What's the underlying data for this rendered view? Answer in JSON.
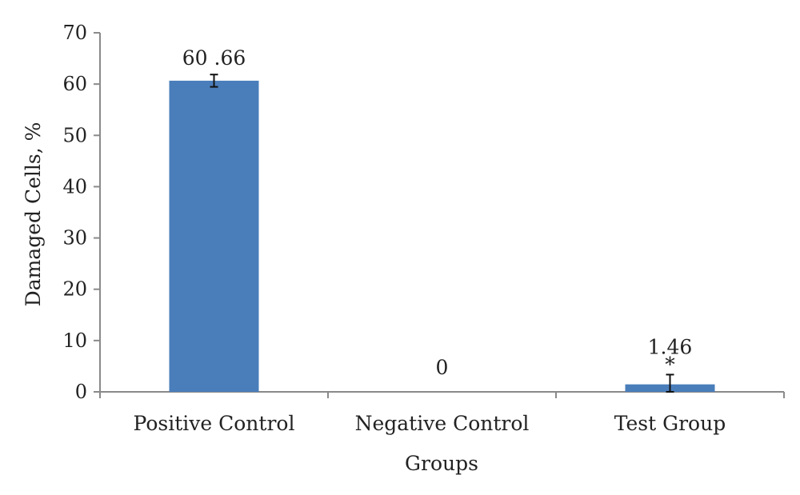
{
  "chart_data": {
    "type": "bar",
    "categories": [
      "Positive Control",
      "Negative Control",
      "Test Group"
    ],
    "values": [
      60.66,
      0,
      1.46
    ],
    "errors": [
      1.2,
      0,
      1.9
    ],
    "data_labels": [
      "60 .66",
      "0",
      "1.46"
    ],
    "annotations": [
      "",
      "",
      "*"
    ],
    "xlabel": "Groups",
    "ylabel": "Damaged Cells, %",
    "ylim": [
      0,
      70
    ],
    "yticks": [
      0,
      10,
      20,
      30,
      40,
      50,
      60,
      70
    ],
    "grid": false,
    "legend": "none",
    "bar_color": "#4a7ebb"
  }
}
